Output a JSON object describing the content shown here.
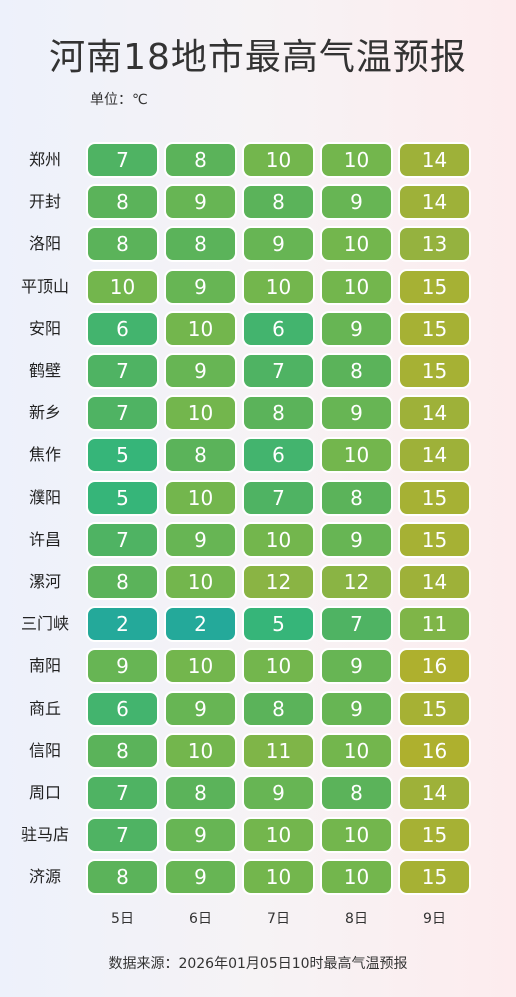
{
  "chart_data": {
    "type": "heatmap",
    "title": "河南18地市最高气温预报",
    "unit_label": "单位：℃",
    "source": "数据来源：2026年01月05日10时最高气温预报",
    "columns": [
      "5日",
      "6日",
      "7日",
      "8日",
      "9日"
    ],
    "rows": [
      {
        "city": "郑州",
        "values": [
          7,
          8,
          10,
          10,
          14
        ]
      },
      {
        "city": "开封",
        "values": [
          8,
          9,
          8,
          9,
          14
        ]
      },
      {
        "city": "洛阳",
        "values": [
          8,
          8,
          9,
          10,
          13
        ]
      },
      {
        "city": "平顶山",
        "values": [
          10,
          9,
          10,
          10,
          15
        ]
      },
      {
        "city": "安阳",
        "values": [
          6,
          10,
          6,
          9,
          15
        ]
      },
      {
        "city": "鹤壁",
        "values": [
          7,
          9,
          7,
          8,
          15
        ]
      },
      {
        "city": "新乡",
        "values": [
          7,
          10,
          8,
          9,
          14
        ]
      },
      {
        "city": "焦作",
        "values": [
          5,
          8,
          6,
          10,
          14
        ]
      },
      {
        "city": "濮阳",
        "values": [
          5,
          10,
          7,
          8,
          15
        ]
      },
      {
        "city": "许昌",
        "values": [
          7,
          9,
          10,
          9,
          15
        ]
      },
      {
        "city": "漯河",
        "values": [
          8,
          10,
          12,
          12,
          14
        ]
      },
      {
        "city": "三门峡",
        "values": [
          2,
          2,
          5,
          7,
          11
        ]
      },
      {
        "city": "南阳",
        "values": [
          9,
          10,
          10,
          9,
          16
        ]
      },
      {
        "city": "商丘",
        "values": [
          6,
          9,
          8,
          9,
          15
        ]
      },
      {
        "city": "信阳",
        "values": [
          8,
          10,
          11,
          10,
          16
        ]
      },
      {
        "city": "周口",
        "values": [
          7,
          8,
          9,
          8,
          14
        ]
      },
      {
        "city": "驻马店",
        "values": [
          7,
          9,
          10,
          10,
          15
        ]
      },
      {
        "city": "济源",
        "values": [
          8,
          9,
          10,
          10,
          15
        ]
      }
    ],
    "color_scale": {
      "min": 2,
      "max": 16,
      "stops": [
        "#24a99a",
        "#34b57b",
        "#56b35c",
        "#78b64b",
        "#97b23e",
        "#aeb02e"
      ]
    }
  }
}
